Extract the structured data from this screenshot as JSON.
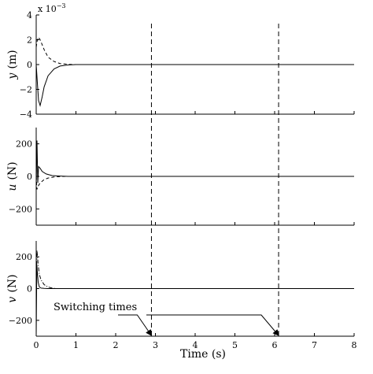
{
  "chart_data": [
    {
      "type": "line",
      "ylabel_var": "y",
      "ylabel_unit": "(m)",
      "exponent_label": "x 10",
      "exponent_power": "−3",
      "xlim": [
        0,
        8
      ],
      "ylim": [
        -4,
        4
      ],
      "yticks": [
        "4",
        "2",
        "0",
        "−2",
        "−4"
      ],
      "series": [
        {
          "style": "solid",
          "x": [
            0,
            0.03,
            0.06,
            0.1,
            0.15,
            0.2,
            0.3,
            0.45,
            0.6,
            0.8,
            1.0,
            8
          ],
          "y": [
            0,
            -1.5,
            -2.9,
            -3.3,
            -2.6,
            -1.8,
            -0.9,
            -0.35,
            -0.12,
            -0.03,
            0,
            0
          ]
        },
        {
          "style": "dashed",
          "x": [
            0,
            0.03,
            0.06,
            0.1,
            0.15,
            0.2,
            0.3,
            0.45,
            0.6,
            0.8,
            1.0,
            8
          ],
          "y": [
            1.4,
            2.0,
            2.2,
            2.0,
            1.6,
            1.2,
            0.6,
            0.25,
            0.08,
            0.02,
            0,
            0
          ]
        }
      ]
    },
    {
      "type": "line",
      "ylabel_var": "u",
      "ylabel_unit": "(N)",
      "xlim": [
        0,
        8
      ],
      "ylim": [
        -300,
        300
      ],
      "yticks": [
        "200",
        "0",
        "−200"
      ],
      "series": [
        {
          "style": "solid",
          "x": [
            0,
            0.02,
            0.04,
            0.06,
            0.1,
            0.15,
            0.25,
            0.4,
            0.6,
            0.8,
            8
          ],
          "y": [
            -70,
            220,
            -40,
            60,
            50,
            30,
            15,
            5,
            2,
            0,
            0
          ]
        },
        {
          "style": "dashed",
          "x": [
            0,
            0.02,
            0.05,
            0.1,
            0.2,
            0.3,
            0.45,
            0.6,
            0.8,
            8
          ],
          "y": [
            0,
            -80,
            -60,
            -40,
            -20,
            -10,
            -4,
            -1,
            0,
            0
          ]
        }
      ]
    },
    {
      "type": "line",
      "ylabel_var": "v",
      "ylabel_unit": "(N)",
      "xlim": [
        0,
        8
      ],
      "xlabel": "Time (s)",
      "xticks": [
        "0",
        "1",
        "2",
        "3",
        "4",
        "5",
        "6",
        "7",
        "8"
      ],
      "ylim": [
        -300,
        300
      ],
      "yticks": [
        "200",
        "0",
        "−200"
      ],
      "series": [
        {
          "style": "solid",
          "x": [
            0,
            0.015,
            0.03,
            0.05,
            0.08,
            0.12,
            0.2,
            0.3,
            0.5,
            8
          ],
          "y": [
            -300,
            150,
            100,
            40,
            10,
            3,
            1,
            0,
            0,
            0
          ]
        },
        {
          "style": "dashdot",
          "x": [
            0,
            0.02,
            0.05,
            0.08,
            0.12,
            0.2,
            0.3,
            0.4,
            0.5,
            8
          ],
          "y": [
            0,
            240,
            150,
            90,
            55,
            25,
            10,
            3,
            0,
            0
          ]
        }
      ]
    }
  ],
  "switching_times": [
    2.9,
    6.1
  ],
  "annotation": "Switching times"
}
